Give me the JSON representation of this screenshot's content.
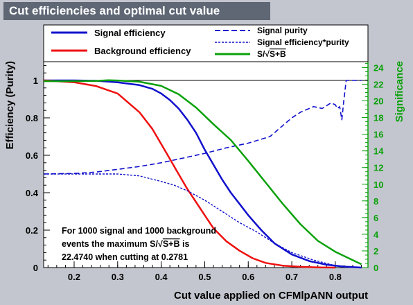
{
  "window": {
    "title": "Cut efficiencies and optimal cut value"
  },
  "colors": {
    "signal": "#1010cc",
    "background": "#ee1111",
    "significance": "#0aa10a",
    "purity": "#1010cc",
    "frame": "#000000"
  },
  "legend": {
    "left": [
      {
        "label": "Signal efficiency",
        "style": "solid",
        "color": "#1010cc"
      },
      {
        "label": "Background efficiency",
        "style": "solid",
        "color": "#ee1111"
      }
    ],
    "right": [
      {
        "label": "Signal purity",
        "style": "dashed",
        "color": "#1010cc"
      },
      {
        "label": "Signal efficiency*purity",
        "style": "dotted",
        "color": "#1010cc"
      },
      {
        "label_prefix": "S/",
        "label_sqrt": "S+B",
        "style": "solid",
        "color": "#0aa10a"
      }
    ]
  },
  "annotation": {
    "line1": "For 1000 signal and 1000 background",
    "line2_prefix": "events the maximum S/",
    "line2_sqrt": "S+B",
    "line2_suffix": " is",
    "line3": "22.4740 when cutting at 0.2781"
  },
  "chart_data": {
    "type": "line",
    "xlabel": "Cut value applied on CFMlpANN output",
    "ylabel": "Efficiency (Purity)",
    "y2label": "Significance",
    "xlim": [
      0.13,
      0.875
    ],
    "ylim": [
      0,
      1.1
    ],
    "y2lim": [
      0,
      24.7
    ],
    "xticks": [
      0.2,
      0.3,
      0.4,
      0.5,
      0.6,
      0.7,
      0.8
    ],
    "xtick_labels": [
      "0.2",
      "0.3",
      "0.4",
      "0.5",
      "0.6",
      "0.7",
      "0.8"
    ],
    "yticks": [
      0,
      0.2,
      0.4,
      0.6,
      0.8,
      1
    ],
    "ytick_labels": [
      "0",
      "0.2",
      "0.4",
      "0.6",
      "0.8",
      "1"
    ],
    "y2ticks": [
      0,
      2,
      4,
      6,
      8,
      10,
      12,
      14,
      16,
      18,
      20,
      22,
      24
    ],
    "y2tick_labels": [
      "0",
      "2",
      "4",
      "6",
      "8",
      "10",
      "12",
      "14",
      "16",
      "18",
      "20",
      "22",
      "24"
    ],
    "reference_line_y": 1.0,
    "series": [
      {
        "name": "Signal efficiency",
        "axis": "left",
        "style": "solid",
        "color": "#1010cc",
        "x": [
          0.13,
          0.2,
          0.25,
          0.3,
          0.35,
          0.38,
          0.4,
          0.42,
          0.44,
          0.46,
          0.48,
          0.5,
          0.52,
          0.54,
          0.56,
          0.58,
          0.6,
          0.63,
          0.66,
          0.7,
          0.74,
          0.78,
          0.82,
          0.86
        ],
        "y": [
          1.0,
          1.0,
          0.998,
          0.99,
          0.975,
          0.955,
          0.93,
          0.895,
          0.85,
          0.79,
          0.72,
          0.63,
          0.55,
          0.47,
          0.4,
          0.34,
          0.28,
          0.2,
          0.13,
          0.07,
          0.035,
          0.015,
          0.005,
          0.0
        ]
      },
      {
        "name": "Background efficiency",
        "axis": "left",
        "style": "solid",
        "color": "#ee1111",
        "x": [
          0.13,
          0.2,
          0.25,
          0.3,
          0.35,
          0.38,
          0.4,
          0.42,
          0.44,
          0.46,
          0.48,
          0.5,
          0.52,
          0.55,
          0.58,
          0.61,
          0.64,
          0.68,
          0.72,
          0.76,
          0.8
        ],
        "y": [
          1.0,
          0.99,
          0.97,
          0.93,
          0.83,
          0.74,
          0.66,
          0.58,
          0.5,
          0.42,
          0.35,
          0.28,
          0.21,
          0.14,
          0.09,
          0.05,
          0.025,
          0.01,
          0.004,
          0.001,
          0.0
        ]
      },
      {
        "name": "Signal purity",
        "axis": "left",
        "style": "dashed",
        "color": "#1010cc",
        "x": [
          0.13,
          0.2,
          0.25,
          0.3,
          0.35,
          0.4,
          0.45,
          0.5,
          0.55,
          0.6,
          0.65,
          0.68,
          0.7,
          0.72,
          0.75,
          0.77,
          0.79,
          0.8,
          0.805,
          0.81,
          0.815,
          0.82,
          0.825,
          0.83,
          0.86
        ],
        "y": [
          0.5,
          0.503,
          0.51,
          0.525,
          0.54,
          0.56,
          0.585,
          0.61,
          0.64,
          0.665,
          0.7,
          0.76,
          0.8,
          0.83,
          0.86,
          0.85,
          0.88,
          0.87,
          0.85,
          0.86,
          0.79,
          0.9,
          1.0,
          1.0,
          1.0
        ]
      },
      {
        "name": "Signal efficiency*purity",
        "axis": "left",
        "style": "dotted",
        "color": "#1010cc",
        "x": [
          0.13,
          0.2,
          0.25,
          0.3,
          0.35,
          0.4,
          0.43,
          0.46,
          0.5,
          0.54,
          0.58,
          0.62,
          0.66,
          0.7,
          0.75,
          0.8,
          0.86
        ],
        "y": [
          0.5,
          0.5,
          0.5,
          0.5,
          0.49,
          0.46,
          0.44,
          0.41,
          0.36,
          0.3,
          0.24,
          0.19,
          0.13,
          0.08,
          0.04,
          0.01,
          0.0
        ]
      },
      {
        "name": "S/sqrt(S+B)",
        "axis": "right",
        "style": "solid",
        "color": "#0aa10a",
        "x": [
          0.13,
          0.2,
          0.25,
          0.278,
          0.3,
          0.35,
          0.4,
          0.44,
          0.48,
          0.52,
          0.56,
          0.6,
          0.64,
          0.68,
          0.72,
          0.76,
          0.8,
          0.84,
          0.86
        ],
        "y": [
          22.36,
          22.36,
          22.4,
          22.47,
          22.45,
          22.3,
          21.8,
          20.8,
          19.2,
          17.2,
          15.3,
          12.8,
          10.2,
          7.6,
          5.2,
          3.2,
          1.9,
          0.9,
          0.4
        ]
      }
    ]
  }
}
